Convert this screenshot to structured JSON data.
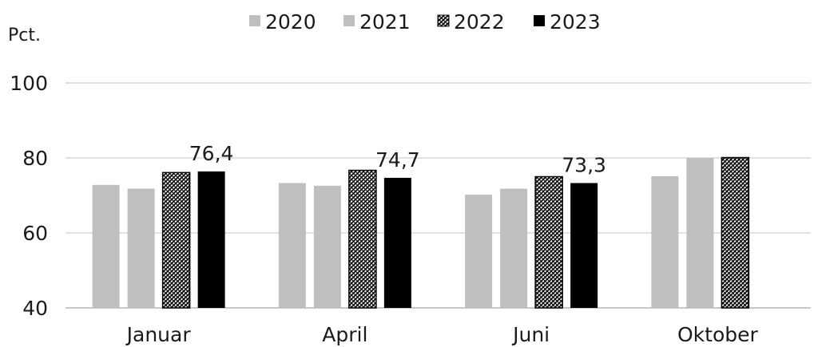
{
  "chart_data": {
    "type": "bar",
    "title": "",
    "xlabel": "",
    "ylabel": "Pct.",
    "ylim": [
      40,
      100
    ],
    "yticks": [
      40,
      60,
      80,
      100
    ],
    "grid": true,
    "legend_position": "top",
    "categories": [
      "Januar",
      "April",
      "Juni",
      "Oktober"
    ],
    "series": [
      {
        "name": "2020",
        "values": [
          72.8,
          73.3,
          70.2,
          75.1
        ],
        "color": "#bfbfbf",
        "pattern": "solid"
      },
      {
        "name": "2021",
        "values": [
          71.8,
          72.6,
          71.8,
          80.0
        ],
        "color": "#bfbfbf",
        "pattern": "solid"
      },
      {
        "name": "2022",
        "values": [
          76.1,
          76.7,
          75.0,
          80.1
        ],
        "color": "#000000",
        "pattern": "crosshatch"
      },
      {
        "name": "2023",
        "values": [
          76.4,
          74.7,
          73.3,
          null
        ],
        "color": "#000000",
        "pattern": "solid"
      }
    ],
    "data_labels": [
      {
        "series": "2023",
        "category": "Januar",
        "text": "76,4"
      },
      {
        "series": "2023",
        "category": "April",
        "text": "74,7"
      },
      {
        "series": "2023",
        "category": "Juni",
        "text": "73,3"
      }
    ]
  }
}
